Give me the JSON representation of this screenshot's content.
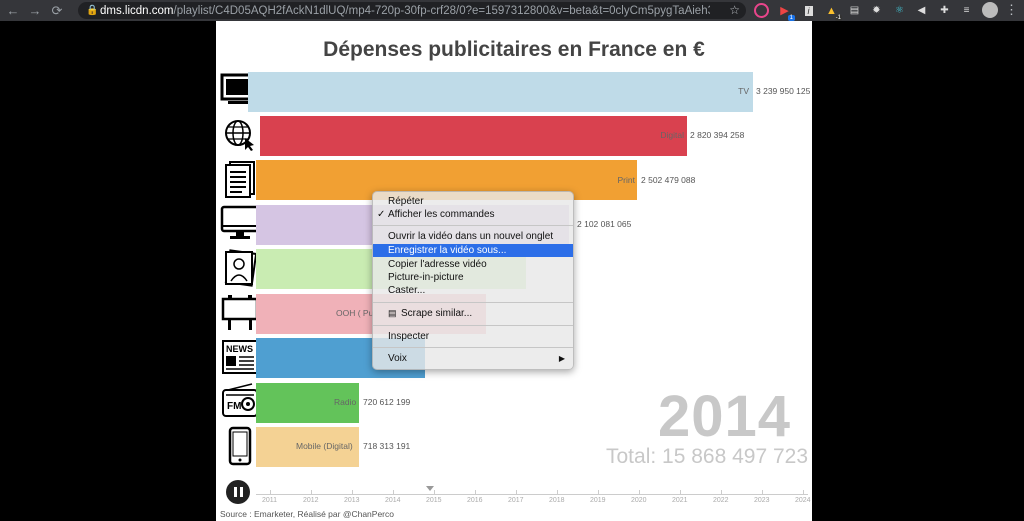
{
  "browser": {
    "url_host": "dms.licdn.com",
    "url_rest": "/playlist/C4D05AQH2fAckN1dlUQ/mp4-720p-30fp-crf28/0?e=1597312800&v=beta&t=0clyCm5pygTaAieh3MT36...",
    "extension_badge": "1",
    "extension_badge2": "-1"
  },
  "video": {
    "title": "Dépenses publicitaires en France en €",
    "year": "2014",
    "total": "Total: 15 868 497 723",
    "source": "Source : Emarketer, Réalisé par @ChanPerco",
    "colors": {
      "tv": "#bfdbe8",
      "digital": "#d9414f",
      "print": "#f1a033",
      "desktop": "#d5c5e3",
      "cinema": "#c9ecb2",
      "ooh": "#f0b1b8",
      "press": "#4f9fd1",
      "radio": "#63c35a",
      "mobile": "#f4d294"
    }
  },
  "chart_data": {
    "type": "bar",
    "title": "Dépenses publicitaires en France en €",
    "categories": [
      "TV",
      "Digital",
      "Print",
      "",
      "",
      "OOH ( Pu",
      "",
      "Radio",
      "Mobile (Digital)"
    ],
    "values": [
      3239950125,
      2820394258,
      2502479088,
      2102081065,
      null,
      null,
      null,
      720612199,
      718313191
    ],
    "value_labels": [
      "3 239 950 125",
      "2 820 394 258",
      "2 502 479 088",
      "2 102 081 065",
      "",
      "",
      "",
      "720 612 199",
      "718 313 191"
    ],
    "timeline_years": [
      "2011",
      "2012",
      "2013",
      "2014",
      "2015",
      "2016",
      "2017",
      "2018",
      "2019",
      "2020",
      "2021",
      "2022",
      "2023",
      "2024"
    ],
    "current_year": "2014",
    "total": "Total: 15 868 497 723"
  },
  "context_menu": {
    "items": [
      {
        "label": "Répéter"
      },
      {
        "label": "Afficher les commandes",
        "checked": true
      },
      {
        "label": "Ouvrir la vidéo dans un nouvel onglet"
      },
      {
        "label": "Enregistrer la vidéo sous...",
        "highlighted": true
      },
      {
        "label": "Copier l'adresse vidéo"
      },
      {
        "label": "Picture-in-picture"
      },
      {
        "label": "Caster..."
      },
      {
        "label": "Scrape similar..."
      },
      {
        "label": "Inspecter"
      },
      {
        "label": "Voix"
      }
    ]
  }
}
